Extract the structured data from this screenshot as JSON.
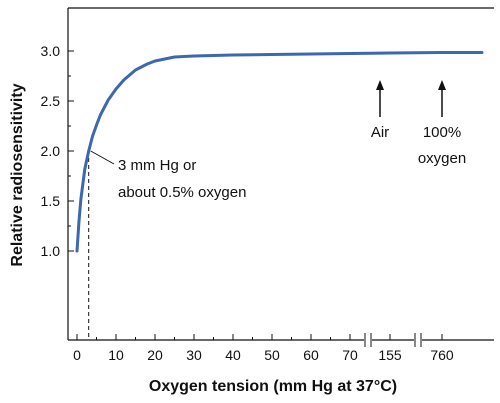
{
  "chart_data": {
    "type": "line",
    "title": "",
    "xlabel": "Oxygen tension (mm Hg at 37°C)",
    "ylabel": "Relative radiosensitivity",
    "ylim": [
      0.3,
      3.35
    ],
    "grid": false,
    "x_tick_labels": [
      "0",
      "10",
      "20",
      "30",
      "40",
      "50",
      "60",
      "70",
      "155",
      "760"
    ],
    "y_tick_labels": [
      "1.0",
      "1.5",
      "2.0",
      "2.5",
      "3.0"
    ],
    "y_ticks": [
      1.0,
      1.5,
      2.0,
      2.5,
      3.0
    ],
    "axis_breaks": "between 70 and 155, and between 155 and 760",
    "series": [
      {
        "color": "#3d68b0",
        "points": [
          [
            0,
            1.0
          ],
          [
            0.5,
            1.3
          ],
          [
            1,
            1.52
          ],
          [
            2,
            1.82
          ],
          [
            3,
            2.0
          ],
          [
            4,
            2.15
          ],
          [
            5,
            2.26
          ],
          [
            6,
            2.36
          ],
          [
            8,
            2.51
          ],
          [
            10,
            2.62
          ],
          [
            12,
            2.71
          ],
          [
            15,
            2.81
          ],
          [
            18,
            2.87
          ],
          [
            20,
            2.9
          ],
          [
            25,
            2.94
          ],
          [
            30,
            2.95
          ],
          [
            40,
            2.96
          ],
          [
            50,
            2.965
          ],
          [
            60,
            2.97
          ],
          [
            70,
            2.975
          ],
          [
            155,
            2.98
          ],
          [
            760,
            2.985
          ]
        ]
      }
    ],
    "annotations": {
      "low_point": {
        "x": 3,
        "y": 2.0,
        "text_line1": "3 mm Hg or",
        "text_line2": "about 0.5% oxygen"
      },
      "air": {
        "x": 155,
        "text": "Air"
      },
      "oxygen": {
        "x": 760,
        "text_line1": "100%",
        "text_line2": "oxygen"
      }
    }
  },
  "colors": {
    "curve": "#3d68b0",
    "axes": "#111111"
  }
}
